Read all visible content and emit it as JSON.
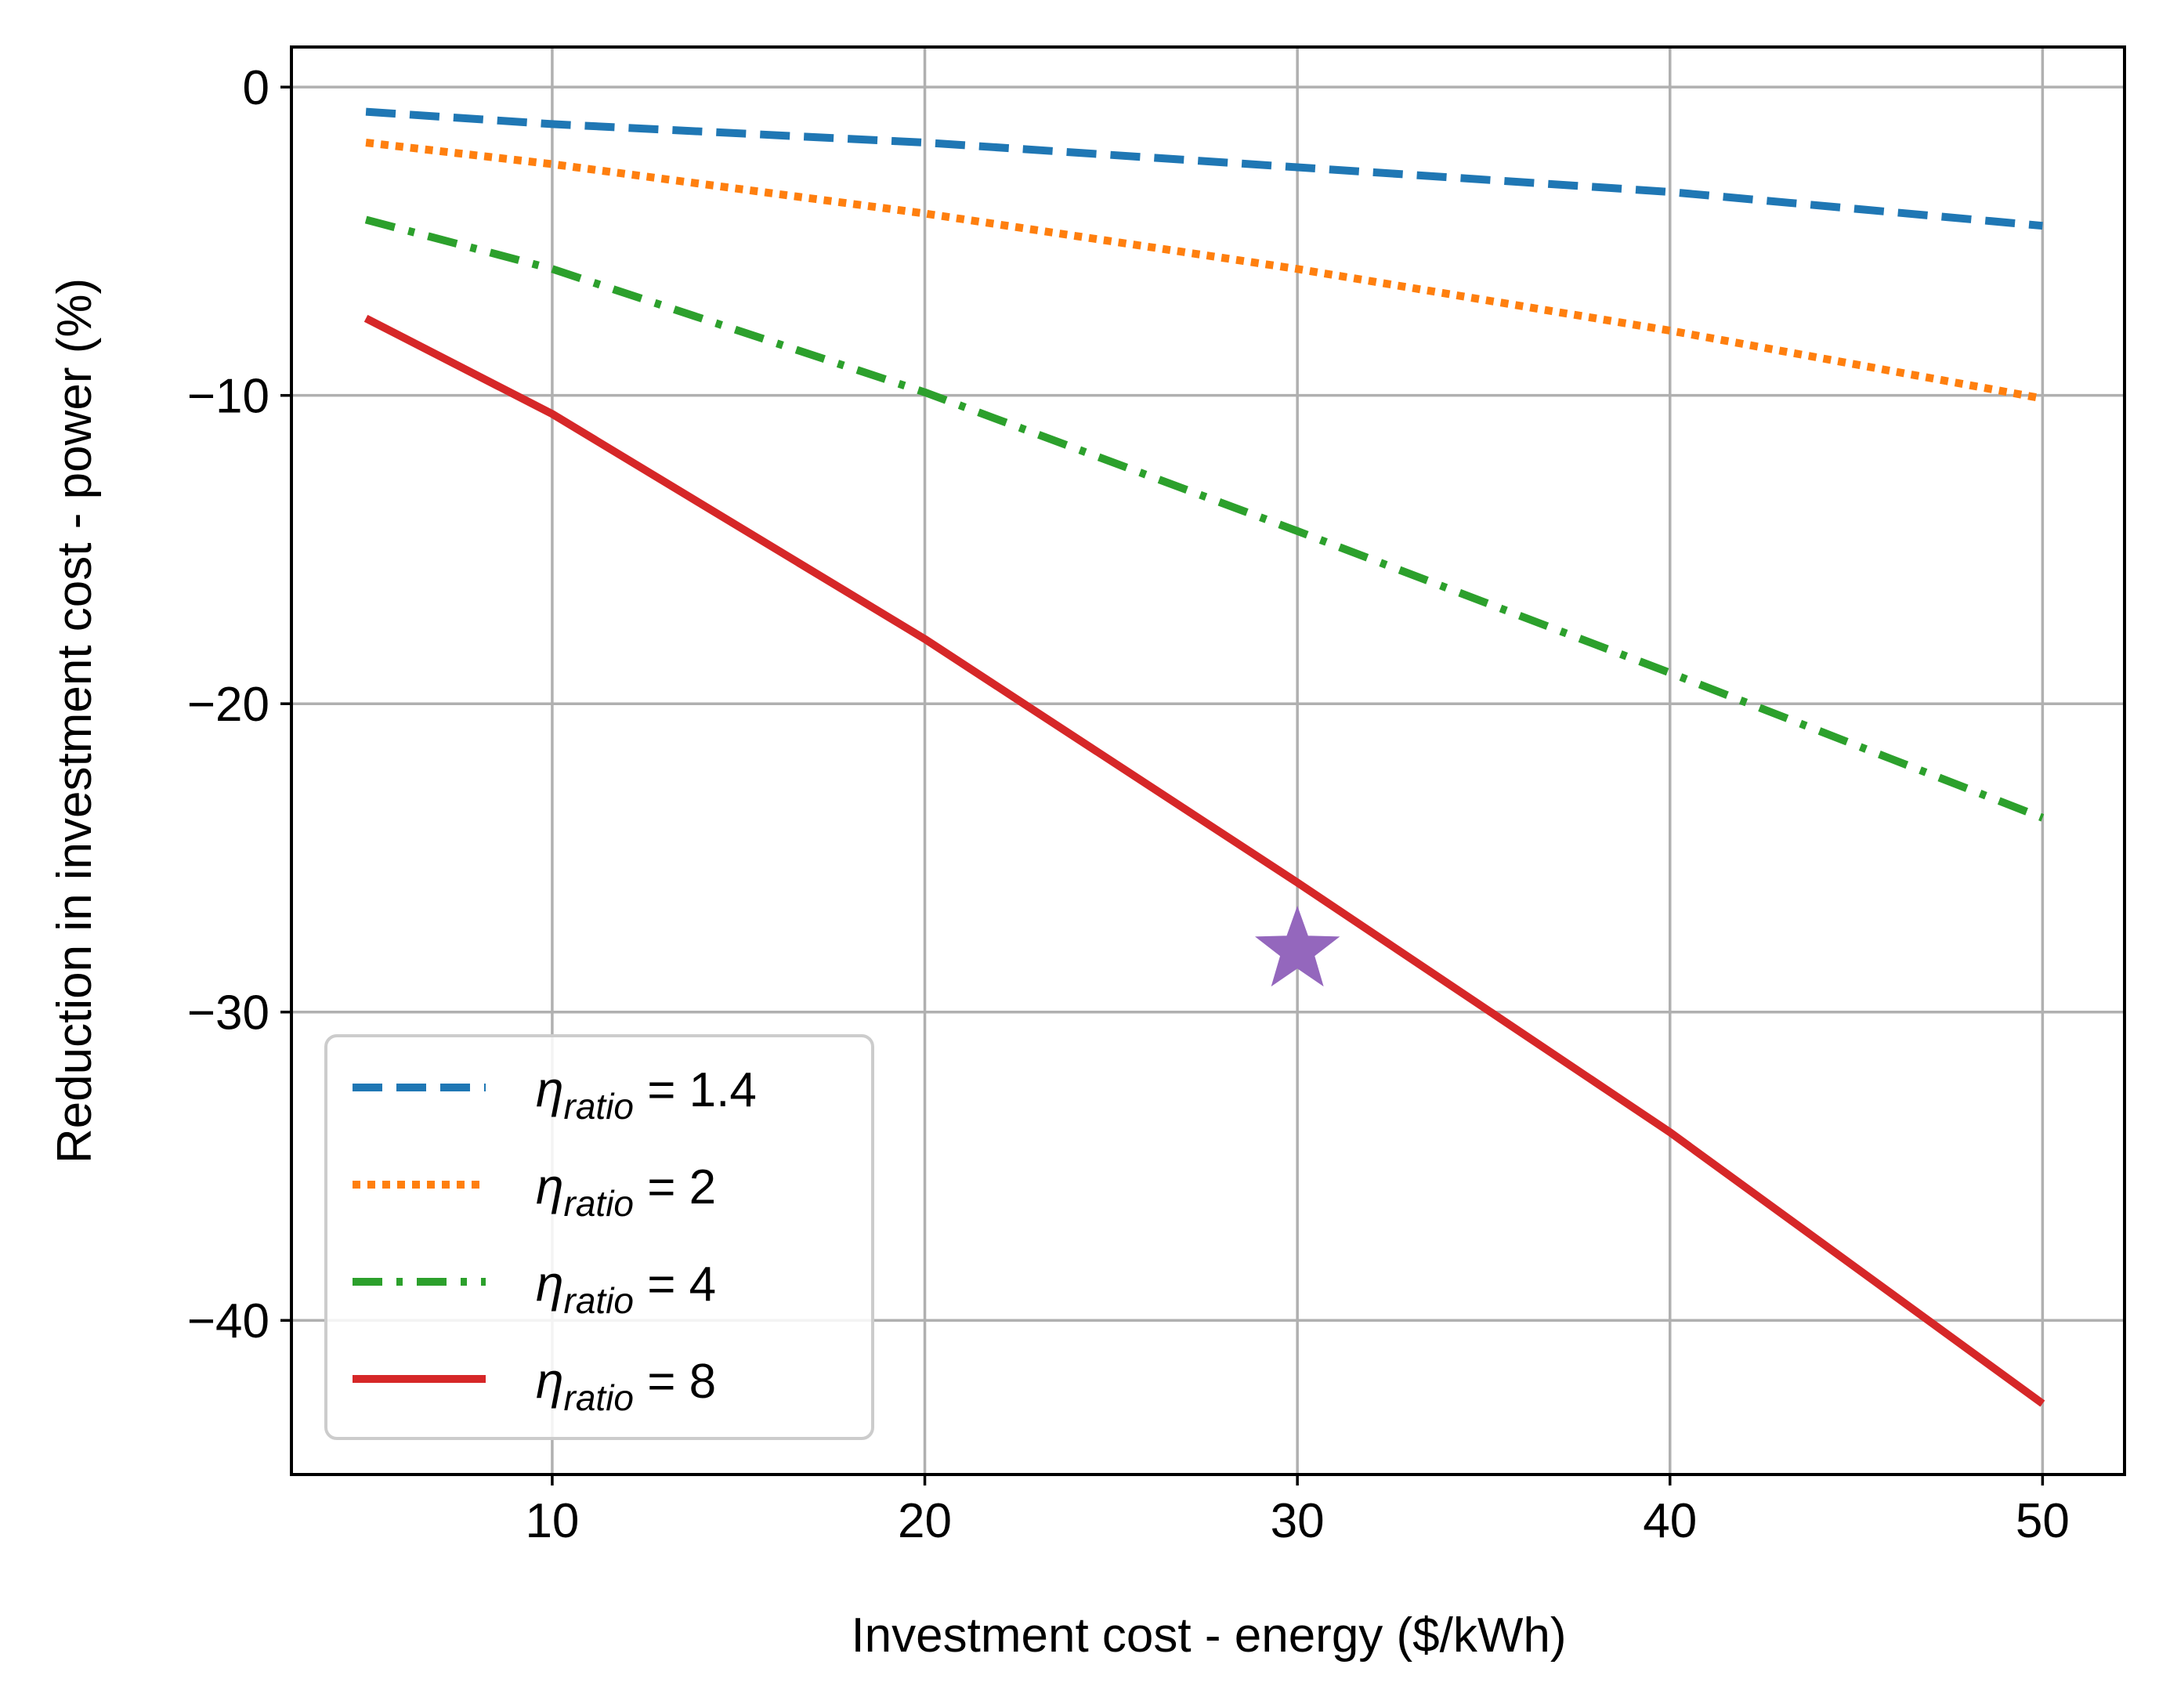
{
  "chart_data": {
    "type": "line",
    "title": "",
    "xlabel": "Investment cost - energy ($/kWh)",
    "ylabel": "Reduction in investment cost - power (%)",
    "xlim": [
      3,
      52.2
    ],
    "ylim": [
      -45,
      1.3
    ],
    "xticks": [
      10,
      20,
      30,
      40,
      50
    ],
    "yticks": [
      0,
      -10,
      -20,
      -30,
      -40
    ],
    "xtick_labels": [
      "10",
      "20",
      "30",
      "40",
      "50"
    ],
    "ytick_labels": [
      "0",
      "−10",
      "−20",
      "−30",
      "−40"
    ],
    "grid": true,
    "legend_position": "lower-left",
    "series": [
      {
        "name": "ηratio = 1.4",
        "symbol": "η",
        "subscript": "ratio",
        "value_text": " = 1.4",
        "color": "#1f77b4",
        "linestyle": "dashed",
        "x": [
          5,
          10,
          20,
          30,
          40,
          50
        ],
        "y": [
          -0.8,
          -1.2,
          -1.8,
          -2.6,
          -3.4,
          -4.5
        ]
      },
      {
        "name": "ηratio = 2",
        "symbol": "η",
        "subscript": "ratio",
        "value_text": " = 2",
        "color": "#ff7f0e",
        "linestyle": "dotted",
        "x": [
          5,
          10,
          20,
          30,
          40,
          50
        ],
        "y": [
          -1.8,
          -2.5,
          -4.1,
          -5.9,
          -7.9,
          -10.1
        ]
      },
      {
        "name": "ηratio = 4",
        "symbol": "η",
        "subscript": "ratio",
        "value_text": " = 4",
        "color": "#2ca02c",
        "linestyle": "dashdot",
        "x": [
          5,
          10,
          20,
          30,
          40,
          50
        ],
        "y": [
          -4.3,
          -5.9,
          -9.9,
          -14.4,
          -19.0,
          -23.7
        ]
      },
      {
        "name": "ηratio = 8",
        "symbol": "η",
        "subscript": "ratio",
        "value_text": " = 8",
        "color": "#d62728",
        "linestyle": "solid",
        "x": [
          5,
          10,
          20,
          30,
          40,
          50
        ],
        "y": [
          -7.5,
          -10.6,
          -17.9,
          -25.8,
          -33.9,
          -42.7
        ]
      }
    ],
    "annotations": [
      {
        "type": "star-marker",
        "x": 30,
        "y": -28.0,
        "color": "#9467bd"
      }
    ]
  }
}
